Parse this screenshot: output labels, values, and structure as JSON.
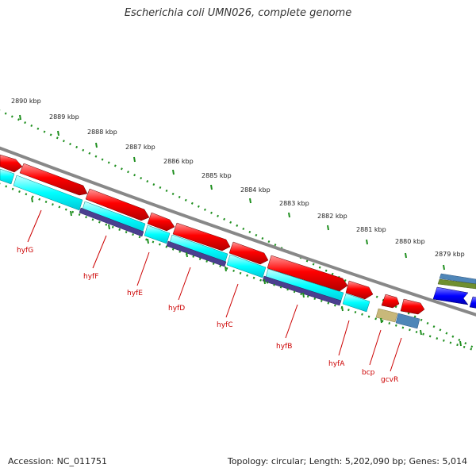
{
  "title": "Escherichia coli UMN026, complete genome",
  "footer": {
    "accession": "Accession: NC_011751",
    "summary": "Topology: circular; Length: 5,202,090 bp; Genes: 5,014"
  },
  "map": {
    "ruler_labels": [
      "2890 kbp",
      "2889 kbp",
      "2888 kbp",
      "2887 kbp",
      "2886 kbp",
      "2885 kbp",
      "2884 kbp",
      "2883 kbp",
      "2882 kbp",
      "2881 kbp",
      "2880 kbp",
      "2879 kbp"
    ],
    "gene_labels": [
      "hyfG",
      "hyfF",
      "hyfE",
      "hyfD",
      "hyfC",
      "hyfB",
      "hyfA",
      "bcp",
      "gcvR"
    ],
    "colors": {
      "cds_forward": "#ff0000",
      "cds_reverse": "#0000ff",
      "gene": "#00ffff",
      "cog_dark": "#4a3f8f",
      "cog_tan": "#c8b87a",
      "cog_steel": "#4f86b8",
      "cog_olive": "#6f8f2f",
      "backbone": "#888888",
      "ticks": "#1f8f1f",
      "labels": "#cc0000"
    }
  }
}
